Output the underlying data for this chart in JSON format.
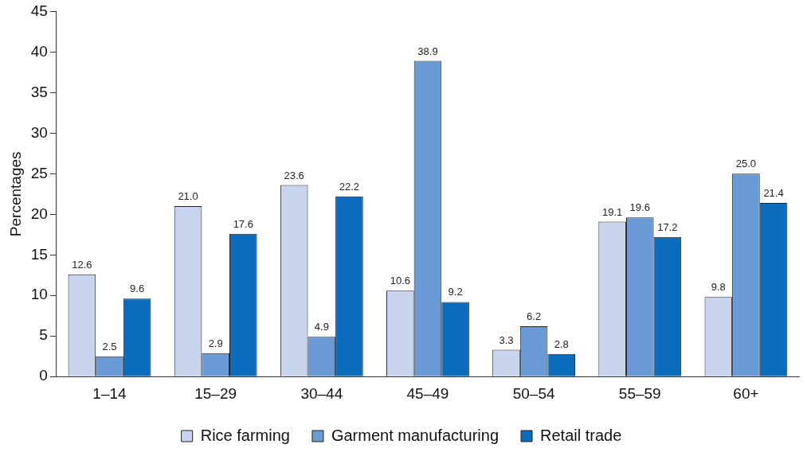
{
  "chart_data": {
    "type": "bar",
    "ylabel": "Percentages",
    "categories": [
      "1–14",
      "15–29",
      "30–44",
      "45–49",
      "50–54",
      "55–59",
      "60+"
    ],
    "series": [
      {
        "name": "Rice farming",
        "color": "#c9d5ef",
        "values": [
          12.6,
          21.0,
          23.6,
          10.6,
          3.3,
          19.1,
          9.8
        ],
        "value_labels": [
          "12.6",
          "21.0",
          "23.6",
          "10.6",
          "3.3",
          "19.1",
          "9.8"
        ]
      },
      {
        "name": "Garment manufacturing",
        "color": "#6a9bd7",
        "values": [
          2.5,
          2.9,
          4.9,
          38.9,
          6.2,
          19.6,
          25.0
        ],
        "value_labels": [
          "2.5",
          "2.9",
          "4.9",
          "38.9",
          "6.2",
          "19.6",
          "25.0"
        ]
      },
      {
        "name": "Retail trade",
        "color": "#0b6cbd",
        "values": [
          9.6,
          17.6,
          22.2,
          9.2,
          2.8,
          17.2,
          21.4
        ],
        "value_labels": [
          "9.6",
          "17.6",
          "22.2",
          "9.2",
          "2.8",
          "17.2",
          "21.4"
        ]
      }
    ],
    "ylim": [
      0,
      45
    ],
    "yticks": [
      0,
      5,
      10,
      15,
      20,
      25,
      30,
      35,
      40,
      45
    ],
    "grid": false,
    "legend": "bottom"
  }
}
